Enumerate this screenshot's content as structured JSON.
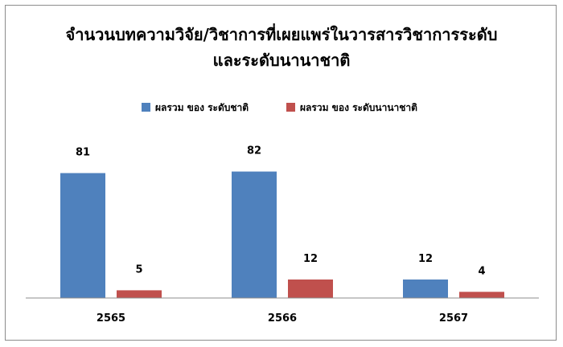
{
  "chart_data": {
    "type": "bar",
    "title_lines": [
      "จำนวนบทความวิจัย/วิชาการที่เผยแพร่ในวารสารวิชาการระดับ",
      "และระดับนานาชาติ"
    ],
    "categories": [
      "2565",
      "2566",
      "2567"
    ],
    "series": [
      {
        "name": "ผลรวม ของ ระดับชาติ",
        "values": [
          81,
          82,
          12
        ],
        "color": "#4f81bd"
      },
      {
        "name": "ผลรวม ของ ระดับนานาชาติ",
        "values": [
          5,
          12,
          4
        ],
        "color": "#c0504d"
      }
    ],
    "ylim": [
      0,
      100
    ],
    "legend_position": "top",
    "grid": false,
    "show_data_labels": true
  }
}
